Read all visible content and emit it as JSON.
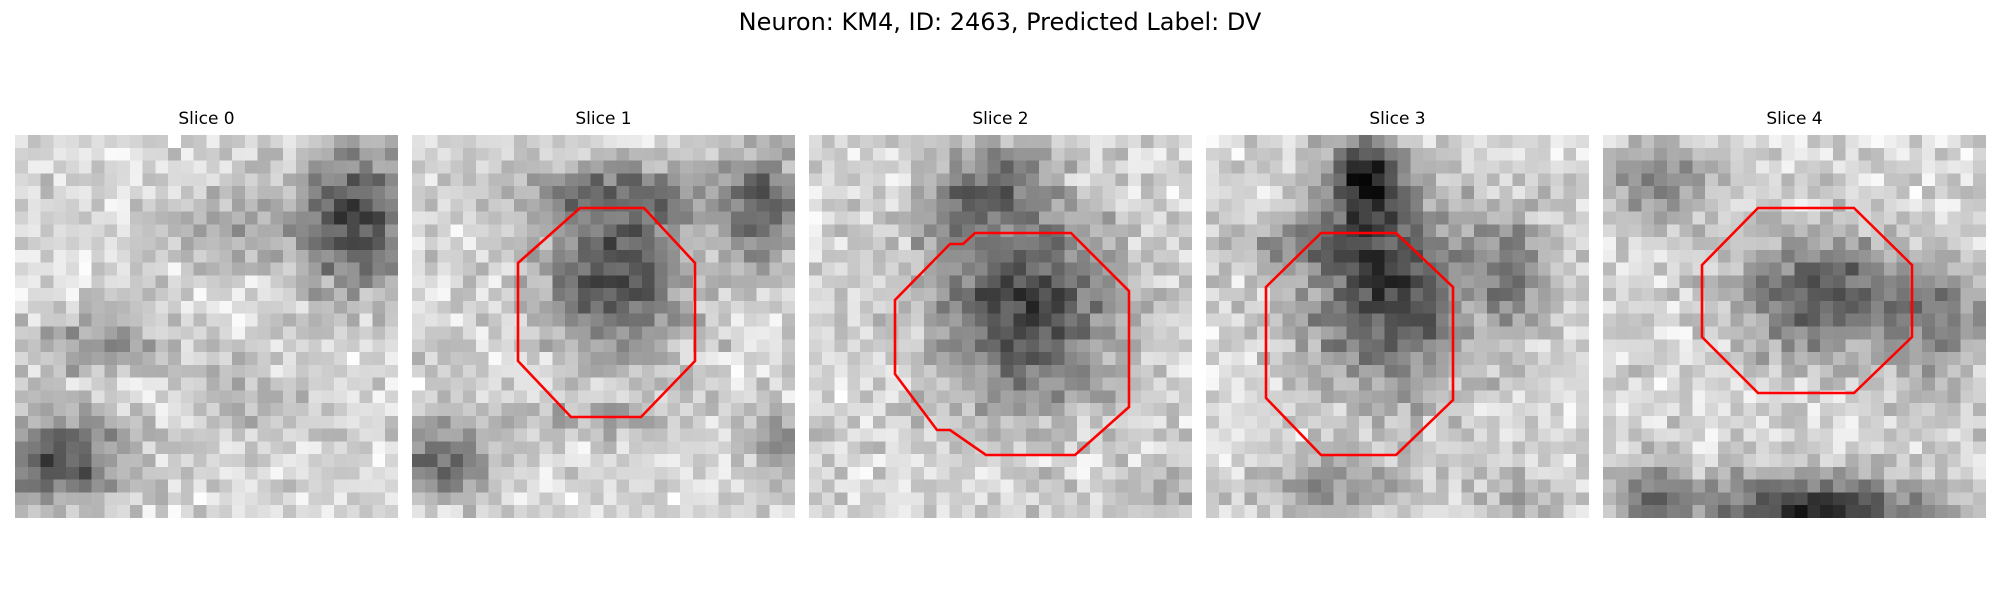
{
  "figure": {
    "title": "Neuron: KM4, ID: 2463, Predicted Label: DV",
    "outline_color": "#ff0000"
  },
  "slices": [
    {
      "label": "Slice 0",
      "has_outline": false
    },
    {
      "label": "Slice 1",
      "has_outline": true
    },
    {
      "label": "Slice 2",
      "has_outline": true
    },
    {
      "label": "Slice 3",
      "has_outline": true
    },
    {
      "label": "Slice 4",
      "has_outline": true
    }
  ]
}
